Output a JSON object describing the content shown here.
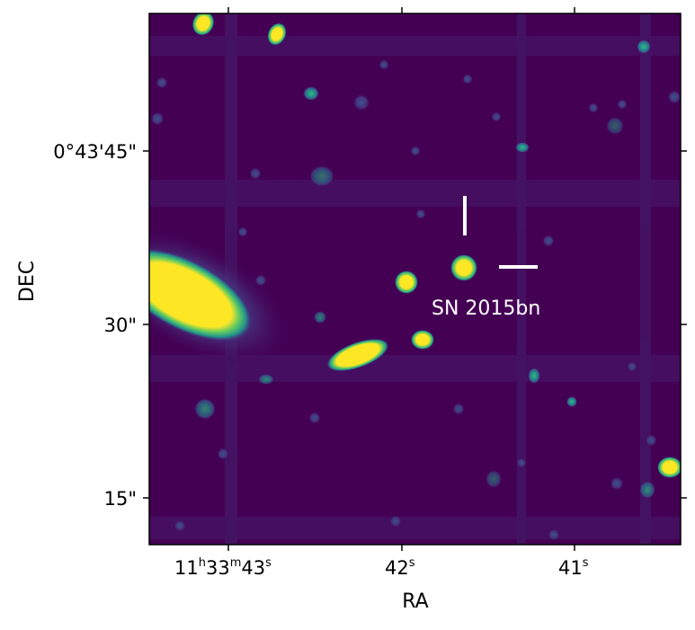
{
  "figure": {
    "x_axis_label": "RA",
    "y_axis_label": "DEC",
    "x_ticks": [
      {
        "main": "11",
        "sup_h": "h",
        "mid": "33",
        "sup_m": "m",
        "tail": "43",
        "sup_s": "s"
      },
      {
        "main": "42",
        "sup_s": "s"
      },
      {
        "main": "41",
        "sup_s": "s"
      }
    ],
    "y_ticks": [
      "0°43'45\"",
      "30\"",
      "15\""
    ],
    "annotation_label": "SN 2015bn",
    "colors": {
      "background": "#440154",
      "bright": "#fde725",
      "mid": "#21918c",
      "marker": "#ffffff"
    }
  }
}
